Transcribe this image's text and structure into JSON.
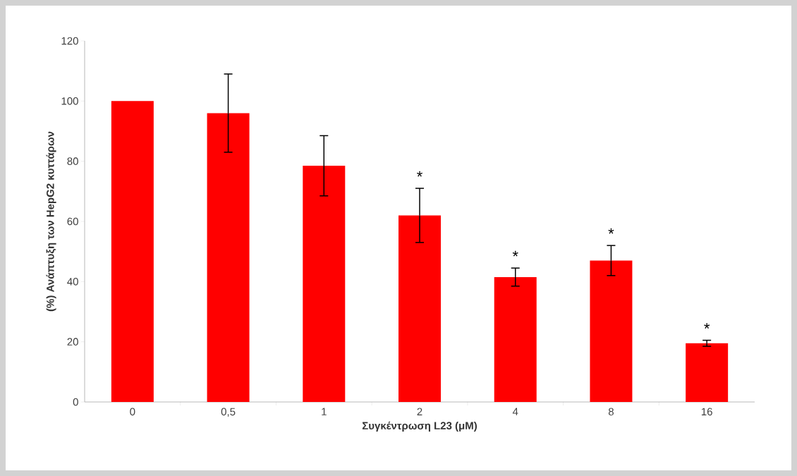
{
  "chart_data": {
    "type": "bar",
    "xlabel": "Συγκέντρωση L23 (μM)",
    "ylabel": "(%) Ανάπτυξη των HepG2 κυττάρων",
    "categories": [
      "0",
      "0,5",
      "1",
      "2",
      "4",
      "8",
      "16"
    ],
    "values": [
      100,
      96,
      78.5,
      62,
      41.5,
      47,
      19.5
    ],
    "errors": [
      null,
      13,
      10,
      9,
      3,
      5,
      1
    ],
    "color": "#ff0000",
    "ylim": [
      0,
      120
    ],
    "yticks": [
      0,
      20,
      40,
      60,
      80,
      100,
      120
    ],
    "grid": false,
    "annotations": [
      {
        "text": "*",
        "x": "2",
        "y": 62
      },
      {
        "text": "*",
        "x": "4",
        "y": 41.5
      },
      {
        "text": "*",
        "x": "8",
        "y": 47
      },
      {
        "text": "*",
        "x": "16",
        "y": 19.5
      }
    ]
  }
}
